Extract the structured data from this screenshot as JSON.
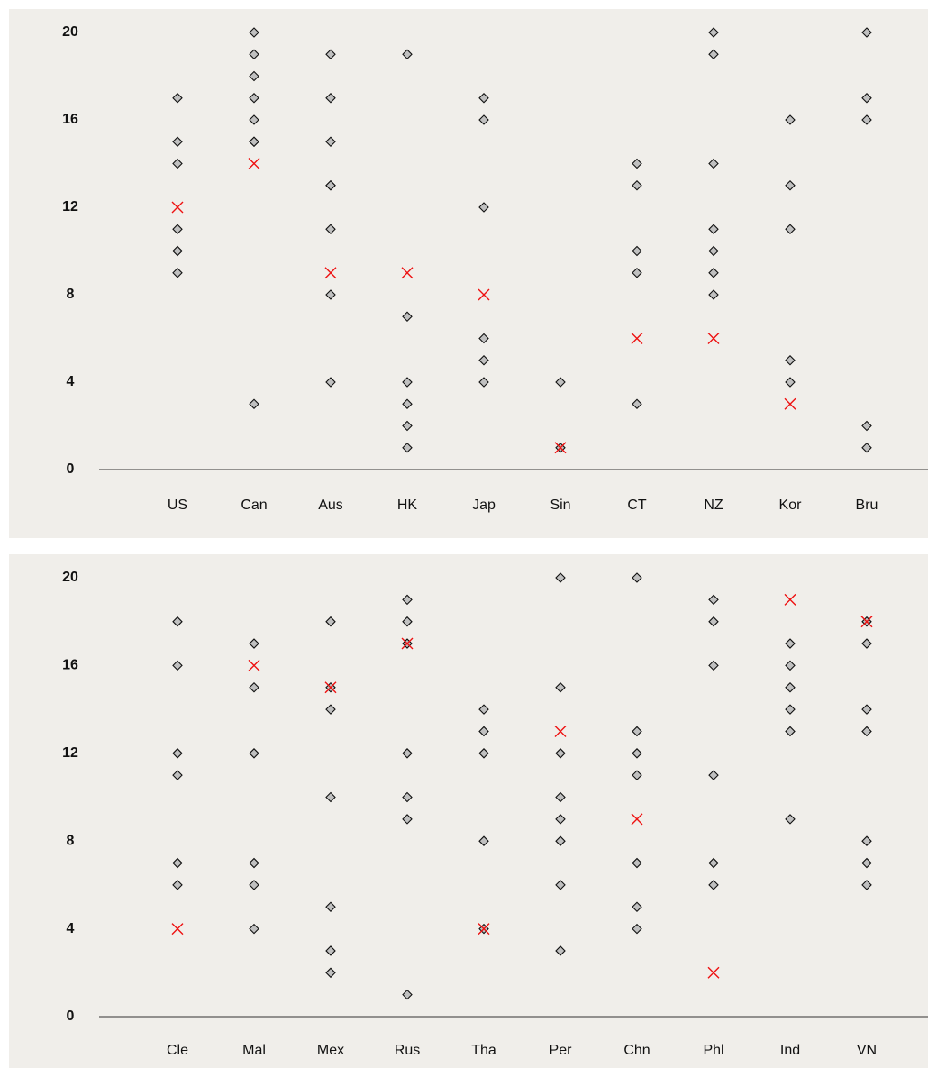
{
  "chart_data": [
    {
      "type": "strip",
      "categories": [
        "US",
        "Can",
        "Aus",
        "HK",
        "Jap",
        "Sin",
        "CT",
        "NZ",
        "Kor",
        "Bru"
      ],
      "values": [
        [
          17,
          15,
          14,
          11,
          10,
          10,
          9
        ],
        [
          20,
          19,
          18,
          17,
          16,
          15,
          15,
          3
        ],
        [
          19,
          17,
          15,
          13,
          13,
          11,
          8,
          4
        ],
        [
          19,
          7,
          4,
          3,
          2,
          1
        ],
        [
          17,
          16,
          12,
          6,
          5,
          4
        ],
        [
          4,
          1
        ],
        [
          14,
          13,
          10,
          9,
          3
        ],
        [
          20,
          19,
          14,
          11,
          10,
          9,
          8
        ],
        [
          16,
          13,
          11,
          5,
          4
        ],
        [
          20,
          17,
          16,
          2,
          1
        ]
      ],
      "highlight": [
        12,
        14,
        9,
        9,
        8,
        1,
        6,
        6,
        3,
        null
      ],
      "color": "#c0c0c0",
      "highlight_color": "#ee1111",
      "ylim": [
        0,
        20
      ],
      "yticks": [
        0,
        4,
        8,
        12,
        16,
        20
      ]
    },
    {
      "type": "strip",
      "categories": [
        "Cle",
        "Mal",
        "Mex",
        "Rus",
        "Tha",
        "Per",
        "Chn",
        "Phl",
        "Ind",
        "VN"
      ],
      "values": [
        [
          18,
          16,
          12,
          11,
          7,
          6
        ],
        [
          17,
          15,
          12,
          7,
          6,
          4
        ],
        [
          18,
          15,
          14,
          10,
          5,
          3,
          2
        ],
        [
          19,
          18,
          17,
          12,
          10,
          9,
          1
        ],
        [
          14,
          13,
          12,
          8,
          4
        ],
        [
          20,
          15,
          12,
          10,
          9,
          8,
          6,
          3
        ],
        [
          20,
          13,
          12,
          11,
          7,
          5,
          4
        ],
        [
          19,
          18,
          16,
          11,
          7,
          6
        ],
        [
          17,
          16,
          15,
          14,
          13,
          9
        ],
        [
          18,
          17,
          14,
          13,
          8,
          7,
          6
        ]
      ],
      "highlight": [
        4,
        16,
        15,
        17,
        4,
        13,
        9,
        2,
        19,
        18
      ],
      "color": "#c0c0c0",
      "highlight_color": "#ee1111",
      "ylim": [
        0,
        20
      ],
      "yticks": [
        0,
        4,
        8,
        12,
        16,
        20
      ]
    }
  ]
}
